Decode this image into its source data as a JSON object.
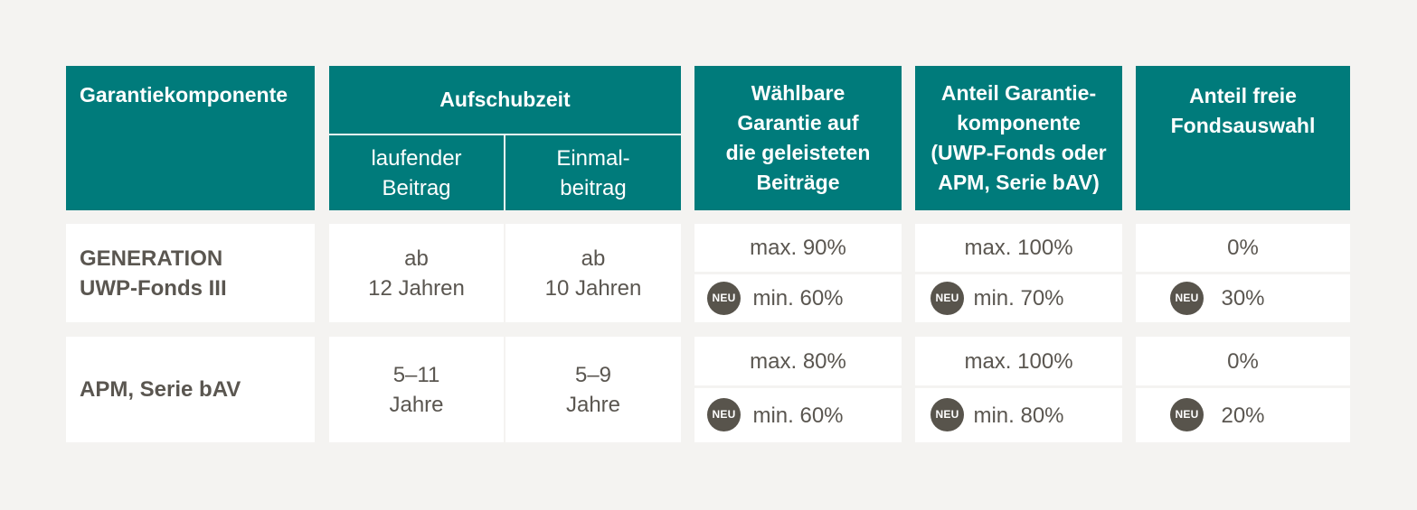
{
  "header": {
    "col1": "Garantiekomponente",
    "col2": "Aufschubzeit",
    "col2_sub1": "laufender\nBeitrag",
    "col2_sub2": "Einmal-\nbeitrag",
    "col3": "Wählbare\nGarantie auf\ndie geleisteten\nBeiträge",
    "col4": "Anteil Garantie-\nkomponente\n(UWP-Fonds oder\nAPM, Serie bAV)",
    "col5": "Anteil freie\nFondsauswahl"
  },
  "badge_label": "NEU",
  "rows": [
    {
      "name": "GENERATION\nUWP-Fonds III",
      "laufend": "ab\n12 Jahren",
      "einmal": "ab\n10 Jahren",
      "garantie_max": "max. 90%",
      "garantie_min": "min. 60%",
      "anteil_max": "max. 100%",
      "anteil_min": "min. 70%",
      "frei_top": "0%",
      "frei_bottom": "30%"
    },
    {
      "name": "APM, Serie bAV",
      "laufend": "5–11\nJahre",
      "einmal": "5–9\nJahre",
      "garantie_max": "max. 80%",
      "garantie_min": "min. 60%",
      "anteil_max": "max. 100%",
      "anteil_min": "min. 80%",
      "frei_top": "0%",
      "frei_bottom": "20%"
    }
  ],
  "colors": {
    "header": "#007b7b",
    "badge": "#58544c",
    "text": "#5a5650",
    "background": "#f4f3f1"
  }
}
